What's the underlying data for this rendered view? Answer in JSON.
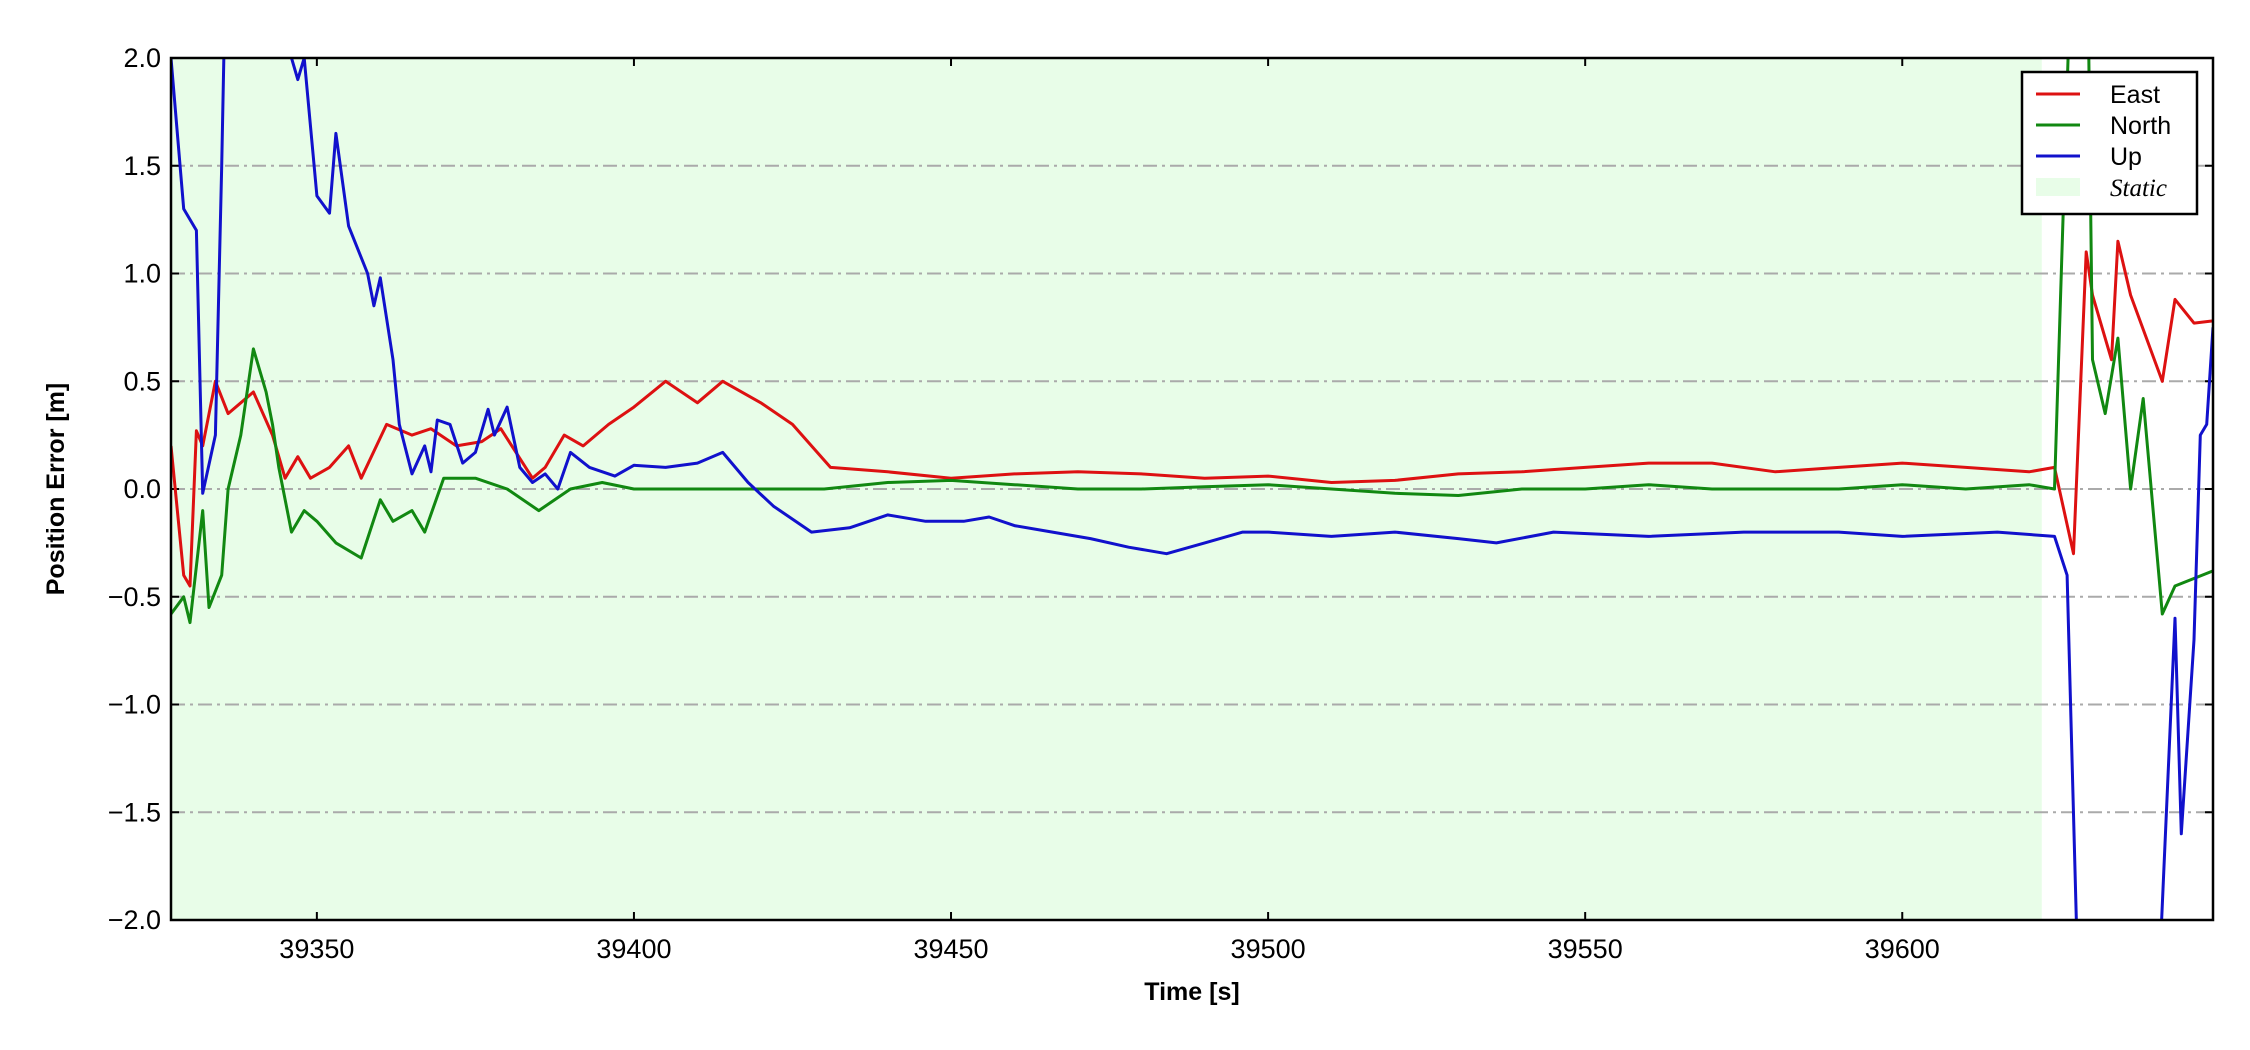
{
  "chart_data": {
    "type": "line",
    "xlabel": "Time [s]",
    "ylabel": "Position Error [m]",
    "xlim": [
      39327,
      39649
    ],
    "ylim": [
      -2,
      2
    ],
    "xticks": [
      39350,
      39400,
      39450,
      39500,
      39550,
      39600
    ],
    "yticks": [
      {
        "value": -2,
        "label": "−2.0"
      },
      {
        "value": -1.5,
        "label": "−1.5"
      },
      {
        "value": -1,
        "label": "−1.0"
      },
      {
        "value": -0.5,
        "label": "−0.5"
      },
      {
        "value": 0,
        "label": "0.0"
      },
      {
        "value": 0.5,
        "label": "0.5"
      },
      {
        "value": 1,
        "label": "1.0"
      },
      {
        "value": 1.5,
        "label": "1.5"
      },
      {
        "value": 2,
        "label": "2.0"
      }
    ],
    "grid": true,
    "legend": "upper right",
    "spans": [
      {
        "name": "Static",
        "start": 39327,
        "end": 39622,
        "color": "#e8fde8"
      }
    ],
    "series": [
      {
        "name": "East",
        "color": "#dd1111",
        "x": [
          39327,
          39329,
          39330,
          39331,
          39332,
          39334,
          39336,
          39338,
          39340,
          39343,
          39345,
          39347,
          39349,
          39352,
          39355,
          39357,
          39361,
          39365,
          39368,
          39372,
          39376,
          39379,
          39384,
          39386,
          39389,
          39392,
          39396,
          39400,
          39405,
          39410,
          39414,
          39420,
          39425,
          39431,
          39440,
          39450,
          39460,
          39470,
          39480,
          39490,
          39500,
          39510,
          39520,
          39530,
          39540,
          39550,
          39560,
          39570,
          39580,
          39590,
          39600,
          39610,
          39620,
          39624,
          39627,
          39629,
          39630,
          39633,
          39634,
          39636,
          39641,
          39643,
          39646,
          39649
        ],
        "values": [
          0.2,
          -0.4,
          -0.45,
          0.27,
          0.2,
          0.5,
          0.35,
          0.4,
          0.45,
          0.25,
          0.05,
          0.15,
          0.05,
          0.1,
          0.2,
          0.05,
          0.3,
          0.25,
          0.28,
          0.2,
          0.22,
          0.28,
          0.05,
          0.1,
          0.25,
          0.2,
          0.3,
          0.38,
          0.5,
          0.4,
          0.5,
          0.4,
          0.3,
          0.1,
          0.08,
          0.05,
          0.07,
          0.08,
          0.07,
          0.05,
          0.06,
          0.03,
          0.04,
          0.07,
          0.08,
          0.1,
          0.12,
          0.12,
          0.08,
          0.1,
          0.12,
          0.1,
          0.08,
          0.1,
          -0.3,
          1.1,
          0.9,
          0.6,
          1.15,
          0.9,
          0.5,
          0.88,
          0.77,
          0.78
        ]
      },
      {
        "name": "North",
        "color": "#118811",
        "x": [
          39327,
          39329,
          39330,
          39332,
          39333,
          39335,
          39336,
          39338,
          39340,
          39342,
          39343,
          39344,
          39346,
          39348,
          39350,
          39353,
          39357,
          39360,
          39362,
          39365,
          39367,
          39370,
          39375,
          39380,
          39385,
          39390,
          39395,
          39400,
          39410,
          39420,
          39430,
          39440,
          39450,
          39460,
          39470,
          39480,
          39490,
          39500,
          39510,
          39520,
          39530,
          39540,
          39550,
          39560,
          39570,
          39580,
          39590,
          39600,
          39610,
          39620,
          39624,
          39627,
          39629,
          39630,
          39632,
          39634,
          39636,
          39638,
          39641,
          39643,
          39649
        ],
        "values": [
          -0.58,
          -0.5,
          -0.62,
          -0.1,
          -0.55,
          -0.4,
          0.0,
          0.25,
          0.65,
          0.45,
          0.3,
          0.1,
          -0.2,
          -0.1,
          -0.15,
          -0.25,
          -0.32,
          -0.05,
          -0.15,
          -0.1,
          -0.2,
          0.05,
          0.05,
          0.0,
          -0.1,
          0.0,
          0.03,
          0.0,
          0.0,
          0.0,
          0.0,
          0.03,
          0.04,
          0.02,
          0.0,
          0.0,
          0.01,
          0.02,
          0.0,
          -0.02,
          -0.03,
          0.0,
          0.0,
          0.02,
          0.0,
          0.0,
          0.0,
          0.02,
          0.0,
          0.02,
          0.0,
          2.8,
          3.0,
          0.6,
          0.35,
          0.7,
          0.0,
          0.42,
          -0.58,
          -0.45,
          -0.38
        ]
      },
      {
        "name": "Up",
        "color": "#1111cc",
        "x": [
          39327,
          39329,
          39331,
          39332,
          39334,
          39335,
          39336,
          39340,
          39346,
          39347,
          39348,
          39350,
          39352,
          39353,
          39355,
          39358,
          39359,
          39360,
          39362,
          39363,
          39365,
          39367,
          39368,
          39369,
          39371,
          39373,
          39375,
          39377,
          39378,
          39380,
          39382,
          39384,
          39386,
          39388,
          39390,
          39393,
          39397,
          39400,
          39405,
          39410,
          39414,
          39418,
          39422,
          39428,
          39434,
          39440,
          39446,
          39452,
          39456,
          39460,
          39466,
          39472,
          39478,
          39484,
          39490,
          39496,
          39500,
          39510,
          39520,
          39530,
          39536,
          39545,
          39560,
          39575,
          39590,
          39600,
          39615,
          39624,
          39626,
          39628,
          39640,
          39643,
          39644,
          39646,
          39647,
          39648,
          39649
        ],
        "values": [
          2.0,
          1.3,
          1.2,
          -0.02,
          0.25,
          1.5,
          3.0,
          3.0,
          2.0,
          1.9,
          2.0,
          1.36,
          1.28,
          1.65,
          1.22,
          1.0,
          0.85,
          0.98,
          0.6,
          0.3,
          0.07,
          0.2,
          0.08,
          0.32,
          0.3,
          0.12,
          0.17,
          0.37,
          0.25,
          0.38,
          0.1,
          0.03,
          0.07,
          0.0,
          0.17,
          0.1,
          0.06,
          0.11,
          0.1,
          0.12,
          0.17,
          0.03,
          -0.08,
          -0.2,
          -0.18,
          -0.12,
          -0.15,
          -0.15,
          -0.13,
          -0.17,
          -0.2,
          -0.23,
          -0.27,
          -0.3,
          -0.25,
          -0.2,
          -0.2,
          -0.22,
          -0.2,
          -0.23,
          -0.25,
          -0.2,
          -0.22,
          -0.2,
          -0.2,
          -0.22,
          -0.2,
          -0.22,
          -0.4,
          -2.6,
          -2.6,
          -0.6,
          -1.6,
          -0.7,
          0.25,
          0.3,
          0.75
        ]
      }
    ]
  }
}
